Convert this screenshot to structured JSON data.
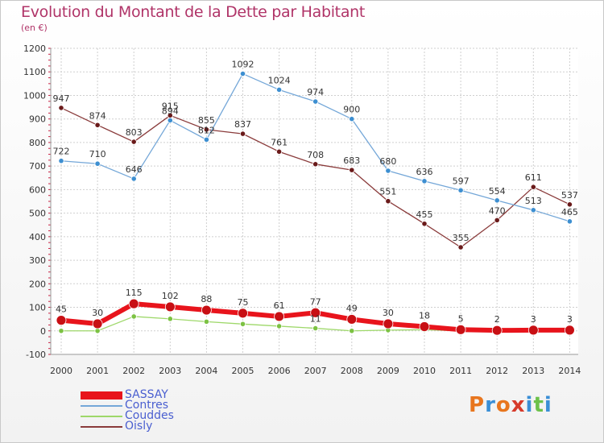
{
  "header": {
    "title": "Evolution du Montant de la Dette par Habitant",
    "subtitle": "(en €)"
  },
  "brand": {
    "logo_text": "Proxiti",
    "logo_colors": [
      "#e8761e",
      "#3a8fd6",
      "#e8761e",
      "#d63a2b",
      "#3a8fd6",
      "#6cc14a",
      "#3a8fd6"
    ]
  },
  "chart_data": {
    "type": "line",
    "title": "Evolution du Montant de la Dette par Habitant",
    "subtitle": "(en €)",
    "xlabel": "",
    "ylabel": "",
    "x": [
      "2000",
      "2001",
      "2002",
      "2003",
      "2004",
      "2005",
      "2006",
      "2007",
      "2008",
      "2009",
      "2010",
      "2011",
      "2012",
      "2013",
      "2014"
    ],
    "ylim": [
      -100,
      1200
    ],
    "yticks": [
      -100,
      0,
      100,
      200,
      300,
      400,
      500,
      600,
      700,
      800,
      900,
      1000,
      1100,
      1200
    ],
    "grid": true,
    "legend_position": "bottom-left",
    "series": [
      {
        "name": "SASSAY",
        "color": "#e8141c",
        "marker_color": "#c80f14",
        "values": [
          45,
          30,
          115,
          102,
          88,
          75,
          61,
          77,
          49,
          30,
          18,
          5,
          2,
          3,
          3
        ],
        "labels": [
          "45",
          "30",
          "115",
          "102",
          "88",
          "75",
          "61",
          "77",
          "49",
          "30",
          "18",
          "5",
          "2",
          "3",
          "3"
        ]
      },
      {
        "name": "Contres",
        "color": "#74a7d8",
        "marker_color": "#3d8fd1",
        "values": [
          722,
          710,
          646,
          894,
          812,
          1092,
          1024,
          974,
          900,
          680,
          636,
          597,
          554,
          513,
          465
        ],
        "labels": [
          "722",
          "710",
          "646",
          "894",
          "812",
          "1092",
          "1024",
          "974",
          "900",
          "680",
          "636",
          "597",
          "554",
          "513",
          "465"
        ]
      },
      {
        "name": "Couddes",
        "color": "#9ed86a",
        "marker_color": "#7cc243",
        "values": [
          0,
          0,
          61,
          51,
          39,
          29,
          20,
          11,
          0,
          3,
          5,
          0,
          0,
          0,
          0
        ],
        "labels": [
          "",
          "",
          "",
          "",
          "",
          "",
          "",
          "11",
          "",
          "",
          "",
          "",
          "",
          "",
          ""
        ]
      },
      {
        "name": "Oisly",
        "color": "#8a3b3b",
        "marker_color": "#6a1a1a",
        "values": [
          947,
          874,
          803,
          915,
          855,
          837,
          761,
          708,
          683,
          551,
          455,
          355,
          470,
          611,
          537
        ],
        "labels": [
          "947",
          "874",
          "803",
          "915",
          "855",
          "837",
          "761",
          "708",
          "683",
          "551",
          "455",
          "355",
          "470",
          "611",
          "537"
        ]
      }
    ]
  }
}
